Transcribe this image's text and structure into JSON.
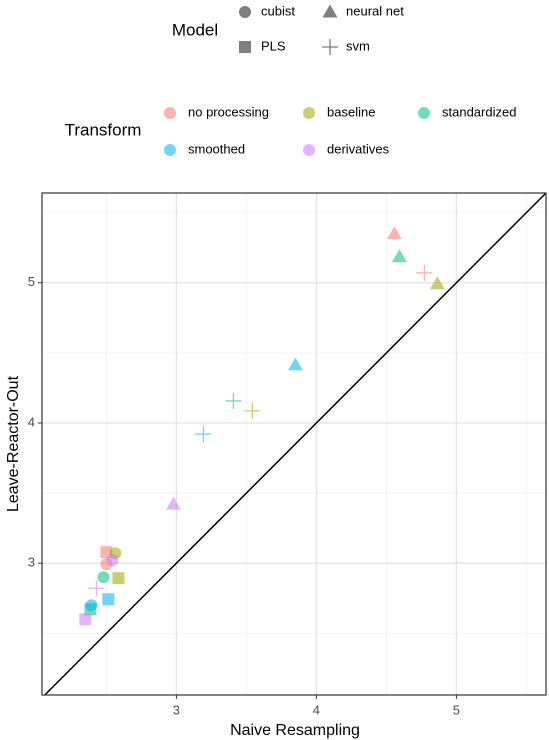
{
  "chart_data": {
    "type": "scatter",
    "x_label": "Naive Resampling",
    "y_label": "Leave-Reactor-Out",
    "xlim": [
      2.04,
      5.64
    ],
    "ylim": [
      2.06,
      5.64
    ],
    "xticks": [
      3,
      4,
      5
    ],
    "yticks": [
      3,
      4,
      5
    ],
    "x_minor_ticks": [
      2.5,
      3.5,
      4.5,
      5.5
    ],
    "y_minor_ticks": [
      2.5,
      3.5,
      4.5,
      5.5
    ],
    "grid": true,
    "identity_line": true,
    "opacity": 0.55,
    "model_legend": {
      "title": "Model",
      "entries": [
        {
          "name": "cubist",
          "shape": "circle"
        },
        {
          "name": "neural net",
          "shape": "triangle"
        },
        {
          "name": "PLS",
          "shape": "square"
        },
        {
          "name": "svm",
          "shape": "plus"
        }
      ]
    },
    "transform_legend_title": "Transform",
    "series": [
      {
        "name": "no processing",
        "color": "#F8766D",
        "models": [
          "neural net",
          "svm",
          "cubist",
          "PLS"
        ],
        "x": [
          4.557,
          4.771,
          2.5,
          2.5
        ],
        "values": [
          5.35,
          5.071,
          2.993,
          3.079
        ]
      },
      {
        "name": "baseline",
        "color": "#A3A500",
        "models": [
          "neural net",
          "svm",
          "cubist",
          "PLS"
        ],
        "x": [
          4.864,
          3.543,
          2.564,
          2.586
        ],
        "values": [
          4.993,
          4.086,
          3.071,
          2.893
        ]
      },
      {
        "name": "standardized",
        "color": "#00BF7D",
        "models": [
          "neural net",
          "svm",
          "cubist",
          "PLS"
        ],
        "x": [
          4.593,
          3.407,
          2.479,
          2.386
        ],
        "values": [
          5.186,
          4.157,
          2.9,
          2.671
        ]
      },
      {
        "name": "smoothed",
        "color": "#00B0F6",
        "models": [
          "neural net",
          "svm",
          "cubist",
          "PLS"
        ],
        "x": [
          3.85,
          3.193,
          2.393,
          2.514
        ],
        "values": [
          4.414,
          3.921,
          2.7,
          2.743
        ]
      },
      {
        "name": "derivatives",
        "color": "#C77CFF",
        "models": [
          "neural net",
          "svm",
          "cubist",
          "PLS"
        ],
        "x": [
          2.979,
          2.429,
          2.543,
          2.35
        ],
        "values": [
          3.421,
          2.821,
          3.021,
          2.6
        ]
      }
    ]
  }
}
